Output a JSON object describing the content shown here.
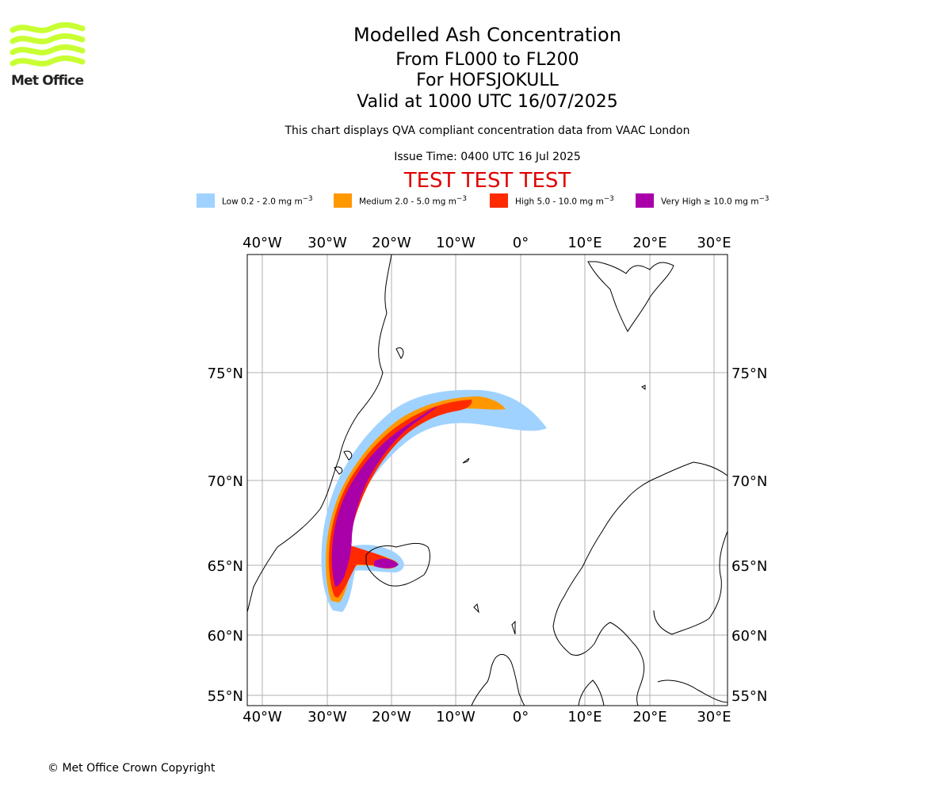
{
  "logo": {
    "name": "Met Office"
  },
  "header": {
    "title": "Modelled Ash Concentration",
    "levels": "From FL000 to FL200",
    "volcano": "For HOFSJOKULL",
    "valid": "Valid at 1000 UTC 16/07/2025",
    "note": "This chart displays QVA compliant concentration data from VAAC London",
    "issue": "Issue Time: 0400 UTC 16 Jul 2025",
    "test_banner": "TEST TEST TEST"
  },
  "legend": [
    {
      "label": "Low 0.2 - 2.0 mg m",
      "color": "#a0d2ff"
    },
    {
      "label": "Medium 2.0 - 5.0 mg m",
      "color": "#ff9800"
    },
    {
      "label": "High 5.0 - 10.0 mg m",
      "color": "#ff2a00"
    },
    {
      "label": "Very High  ≥  10.0 mg m",
      "color": "#aa00aa"
    }
  ],
  "legend_unit_exponent": "−3",
  "map": {
    "lon_labels": [
      "40°W",
      "30°W",
      "20°W",
      "10°W",
      "0°",
      "10°E",
      "20°E",
      "30°E"
    ],
    "lat_labels": [
      "75°N",
      "70°N",
      "65°N",
      "60°N",
      "55°N"
    ]
  },
  "footer": {
    "copyright": "© Met Office Crown Copyright"
  }
}
